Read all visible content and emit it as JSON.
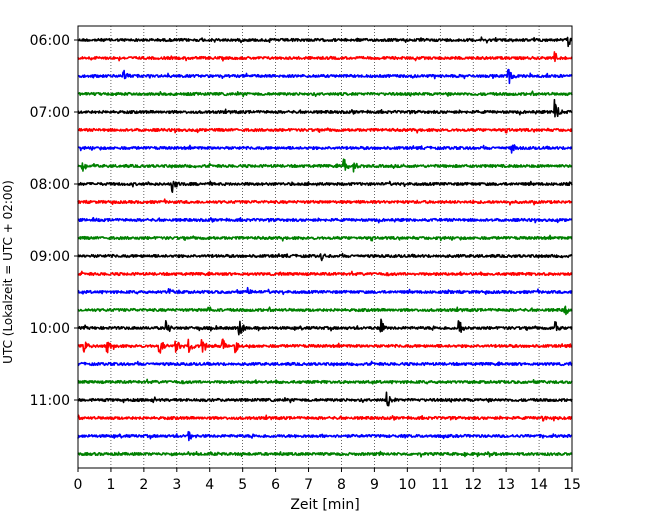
{
  "chart_data": {
    "type": "line",
    "title": "",
    "xlabel": "Zeit  [min]",
    "ylabel": "UTC (Lokalzeit = UTC + 02:00)",
    "xlim": [
      0,
      15
    ],
    "x_ticks": [
      "0",
      "1",
      "2",
      "3",
      "4",
      "5",
      "6",
      "7",
      "8",
      "9",
      "10",
      "11",
      "12",
      "13",
      "14",
      "15"
    ],
    "y_tick_labels": [
      "06:00",
      "07:00",
      "08:00",
      "09:00",
      "10:00",
      "11:00"
    ],
    "y_tick_rows": [
      0,
      4,
      8,
      12,
      16,
      20
    ],
    "grid_x": true,
    "trace_color_cycle": [
      "#000000",
      "#ff0000",
      "#0000ff",
      "#008000"
    ],
    "n_traces": 24,
    "trace_start_times": [
      "06:00",
      "06:15",
      "06:30",
      "06:45",
      "07:00",
      "07:15",
      "07:30",
      "07:45",
      "08:00",
      "08:15",
      "08:30",
      "08:45",
      "09:00",
      "09:15",
      "09:30",
      "09:45",
      "10:00",
      "10:15",
      "10:30",
      "10:45",
      "11:00",
      "11:15",
      "11:30",
      "11:45"
    ],
    "events": [
      {
        "trace": 0,
        "x": 14.9,
        "amp": 0.7
      },
      {
        "trace": 1,
        "x": 14.5,
        "amp": 0.6
      },
      {
        "trace": 2,
        "x": 1.4,
        "amp": 0.6
      },
      {
        "trace": 2,
        "x": 13.1,
        "amp": 0.9
      },
      {
        "trace": 4,
        "x": 14.5,
        "amp": 1.9
      },
      {
        "trace": 6,
        "x": 13.2,
        "amp": 0.5
      },
      {
        "trace": 7,
        "x": 0.15,
        "amp": 0.7
      },
      {
        "trace": 7,
        "x": 8.1,
        "amp": 0.8
      },
      {
        "trace": 7,
        "x": 8.4,
        "amp": 0.8
      },
      {
        "trace": 8,
        "x": 2.9,
        "amp": 1.0
      },
      {
        "trace": 10,
        "x": 0.4,
        "amp": 0.4
      },
      {
        "trace": 12,
        "x": 7.4,
        "amp": 0.4
      },
      {
        "trace": 14,
        "x": 2.8,
        "amp": 0.4
      },
      {
        "trace": 14,
        "x": 5.2,
        "amp": 0.4
      },
      {
        "trace": 15,
        "x": 4.0,
        "amp": 0.4
      },
      {
        "trace": 15,
        "x": 14.8,
        "amp": 0.5
      },
      {
        "trace": 16,
        "x": 2.7,
        "amp": 0.7
      },
      {
        "trace": 16,
        "x": 4.9,
        "amp": 1.3
      },
      {
        "trace": 16,
        "x": 9.2,
        "amp": 1.0
      },
      {
        "trace": 16,
        "x": 11.6,
        "amp": 1.0
      },
      {
        "trace": 16,
        "x": 14.5,
        "amp": 0.9
      },
      {
        "trace": 17,
        "x": 0.2,
        "amp": 0.9
      },
      {
        "trace": 17,
        "x": 0.9,
        "amp": 0.8
      },
      {
        "trace": 17,
        "x": 2.5,
        "amp": 0.8
      },
      {
        "trace": 17,
        "x": 3.0,
        "amp": 1.0
      },
      {
        "trace": 17,
        "x": 3.4,
        "amp": 0.9
      },
      {
        "trace": 17,
        "x": 3.8,
        "amp": 0.8
      },
      {
        "trace": 17,
        "x": 4.4,
        "amp": 0.8
      },
      {
        "trace": 17,
        "x": 4.8,
        "amp": 0.8
      },
      {
        "trace": 20,
        "x": 9.4,
        "amp": 1.0
      },
      {
        "trace": 21,
        "x": 14.1,
        "amp": 0.4
      },
      {
        "trace": 22,
        "x": 3.4,
        "amp": 0.6
      }
    ]
  }
}
